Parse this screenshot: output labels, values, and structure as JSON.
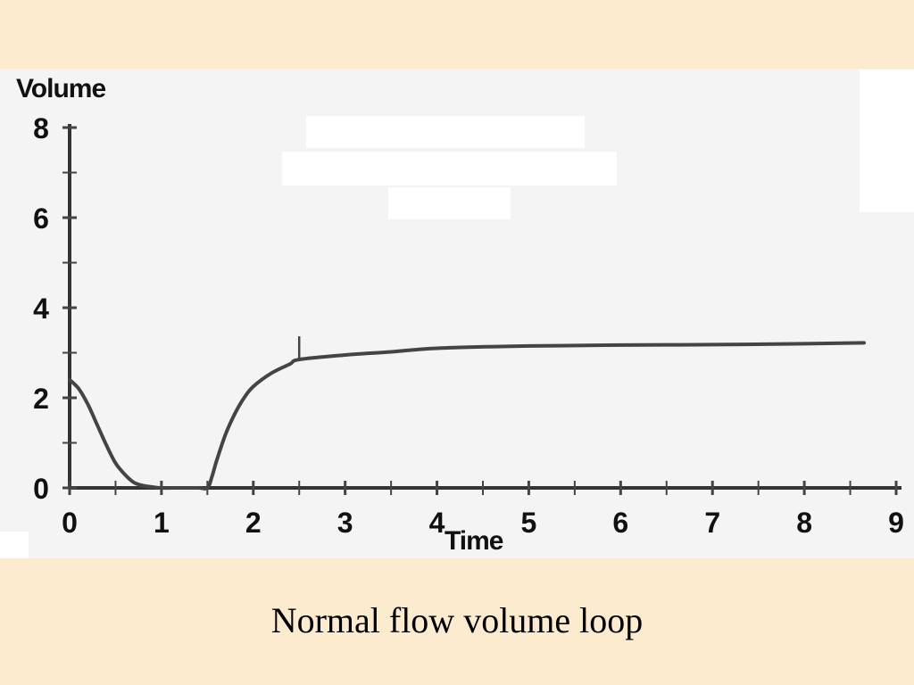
{
  "caption": "Normal flow volume loop",
  "chart_data": {
    "type": "line",
    "title": "",
    "xlabel": "Time",
    "ylabel": "Volume",
    "xlim": [
      0,
      9
    ],
    "ylim": [
      0,
      8
    ],
    "x_major_ticks": [
      0,
      1,
      2,
      3,
      4,
      5,
      6,
      7,
      8,
      9
    ],
    "y_major_ticks": [
      0,
      2,
      4,
      6,
      8
    ],
    "x_tick_labels": [
      "0",
      "1",
      "2",
      "3",
      "4",
      "5",
      "6",
      "7",
      "8",
      "9"
    ],
    "y_tick_labels": [
      "0",
      "2",
      "4",
      "6",
      "8"
    ],
    "grid": false,
    "line_color": "#444444",
    "series": [
      {
        "x": [
          0,
          0.1,
          0.2,
          0.3,
          0.4,
          0.5,
          0.6,
          0.7,
          0.8,
          0.9,
          1.0,
          1.2,
          1.4,
          1.5,
          1.55,
          1.6,
          1.7,
          1.8,
          1.9,
          2.0,
          2.2,
          2.4,
          2.5,
          3.0,
          3.5,
          4.0,
          5.0,
          6.0,
          7.0,
          8.0,
          8.65
        ],
        "y": [
          2.4,
          2.2,
          1.85,
          1.4,
          0.95,
          0.55,
          0.3,
          0.12,
          0.05,
          0.02,
          0.0,
          0.0,
          0.0,
          0.0,
          0.25,
          0.6,
          1.2,
          1.65,
          2.0,
          2.25,
          2.55,
          2.75,
          2.85,
          2.95,
          3.02,
          3.1,
          3.15,
          3.17,
          3.18,
          3.2,
          3.22
        ]
      }
    ],
    "annotations": [
      {
        "x": 2.5,
        "y": 2.85,
        "text": ""
      }
    ]
  }
}
